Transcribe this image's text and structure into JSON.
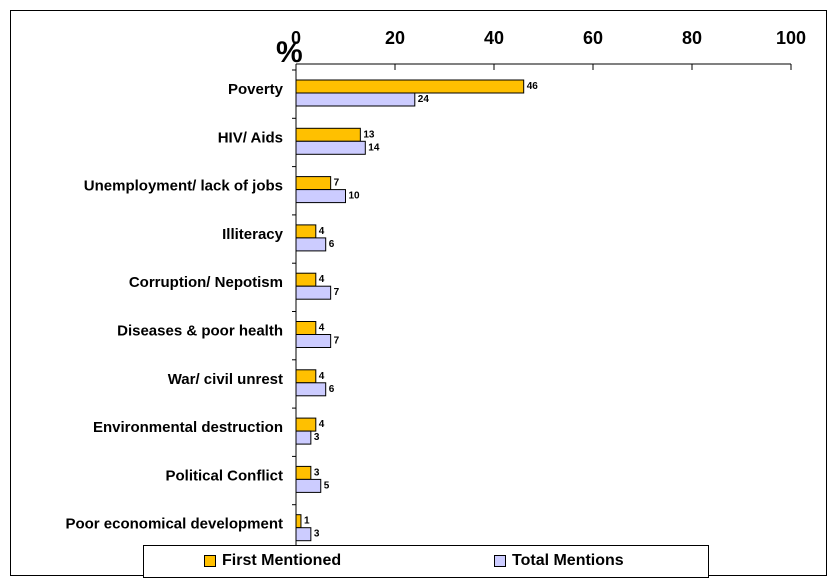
{
  "chart_data": {
    "type": "bar",
    "orientation": "horizontal",
    "unit_label": "%",
    "categories": [
      "Poverty",
      "HIV/ Aids",
      "Unemployment/ lack of jobs",
      "Illiteracy",
      "Corruption/ Nepotism",
      "Diseases & poor health",
      "War/ civil unrest",
      "Environmental destruction",
      "Political Conflict",
      "Poor economical development"
    ],
    "series": [
      {
        "name": "First Mentioned",
        "color": "#FFC000",
        "values": [
          46,
          13,
          7,
          4,
          4,
          4,
          4,
          4,
          3,
          1
        ]
      },
      {
        "name": "Total Mentions",
        "color": "#CCCCFF",
        "values": [
          24,
          14,
          10,
          6,
          7,
          7,
          6,
          3,
          5,
          3
        ]
      }
    ],
    "xlim": [
      0,
      100
    ],
    "xticks": [
      0,
      20,
      40,
      60,
      80,
      100
    ],
    "axis_position": "top",
    "grid": false,
    "legend_position": "bottom"
  }
}
